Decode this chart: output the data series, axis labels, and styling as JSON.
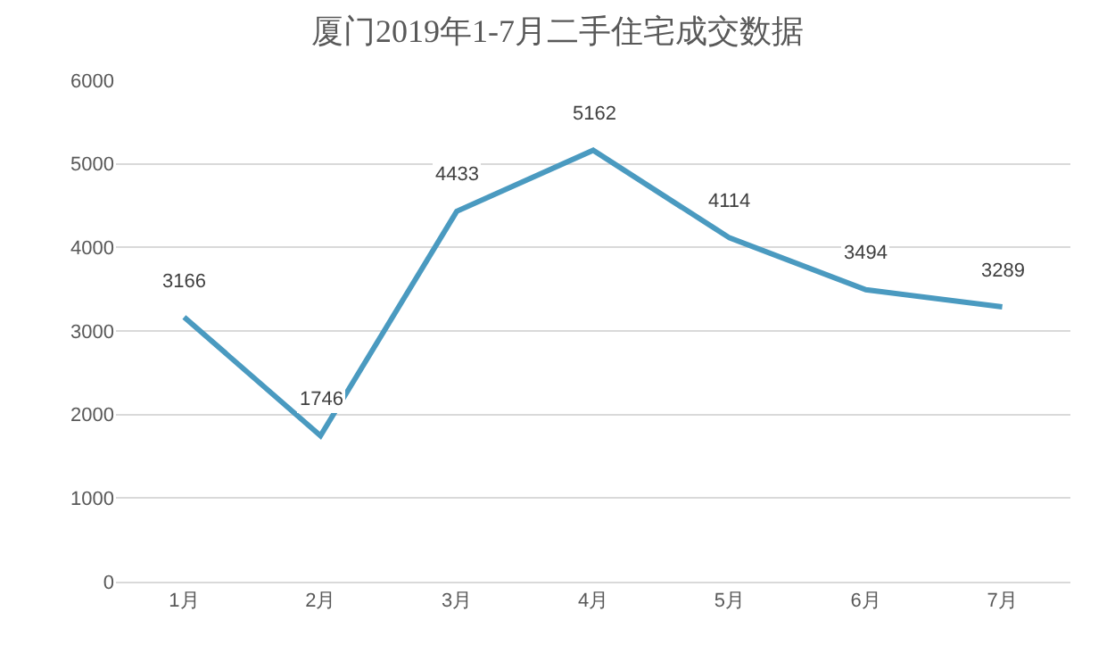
{
  "chart_data": {
    "type": "line",
    "title": "厦门2019年1-7月二手住宅成交数据",
    "categories": [
      "1月",
      "2月",
      "3月",
      "4月",
      "5月",
      "6月",
      "7月"
    ],
    "series": [
      {
        "color": "#4a9ac0",
        "values": [
          3166,
          1746,
          4433,
          5162,
          4114,
          3494,
          3289
        ]
      }
    ],
    "ylim": [
      0,
      6000
    ],
    "yticks": [
      0,
      1000,
      2000,
      3000,
      4000,
      5000,
      6000
    ],
    "grid": "y",
    "data_labels": true,
    "marker": "none",
    "line_style": "solid"
  }
}
